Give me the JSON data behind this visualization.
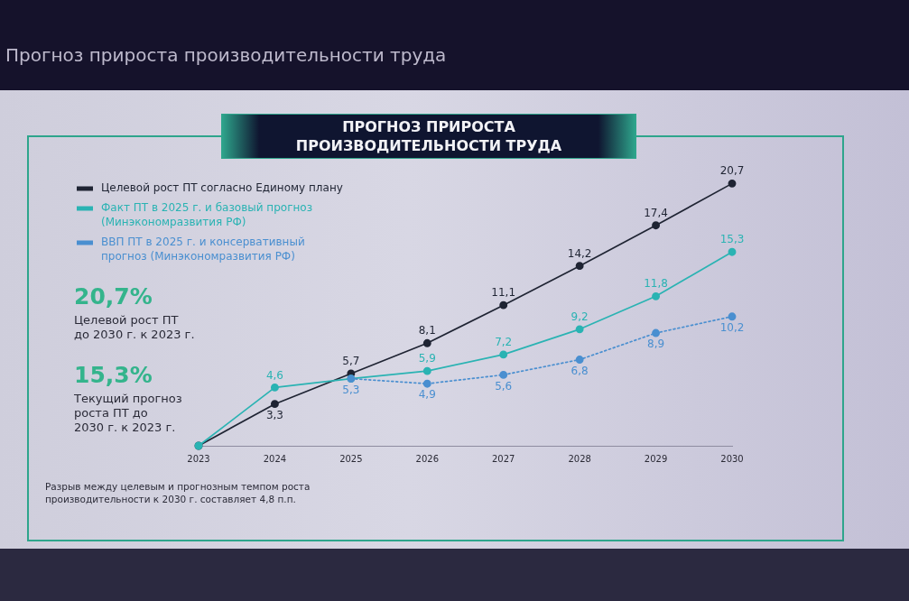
{
  "chart_data": {
    "type": "line",
    "title": "Прогноз прироста производительности труда",
    "subtitle": "ПРОГНОЗ ПРИРОСТА ПРОИЗВОДИТЕЛЬНОСТИ ТРУДА",
    "categories": [
      "2023",
      "2024",
      "2025",
      "2026",
      "2027",
      "2028",
      "2029",
      "2030"
    ],
    "series": [
      {
        "name": "Целевой рост ПТ согласно Единому плану",
        "color": "#1f2433",
        "line_style": "solid",
        "values": [
          0,
          3.3,
          5.7,
          8.1,
          11.1,
          14.2,
          17.4,
          20.7
        ],
        "value_labels": [
          null,
          "3,3",
          "5,7",
          "8,1",
          "11,1",
          "14,2",
          "17,4",
          "20,7"
        ]
      },
      {
        "name": "Факт ПТ в 2025 г. и базовый прогноз (Минэкономразвития РФ)",
        "color": "#2ab3b3",
        "line_style": "solid",
        "values": [
          0,
          4.6,
          5.3,
          5.9,
          7.2,
          9.2,
          11.8,
          15.3
        ],
        "value_labels": [
          null,
          "4,6",
          null,
          "5,9",
          "7,2",
          "9,2",
          "11,8",
          "15,3"
        ]
      },
      {
        "name": "ВВП ПТ в 2025 г. и консервативный прогноз (Минэкономразвития РФ)",
        "color": "#4a8fd0",
        "line_style": "dotted",
        "values": [
          null,
          null,
          5.3,
          4.9,
          5.6,
          6.8,
          8.9,
          10.2
        ],
        "value_labels": [
          null,
          null,
          "5,3",
          "4,9",
          "5,6",
          "6,8",
          "8,9",
          "10,2"
        ]
      }
    ],
    "marker": "circle",
    "grid": false,
    "legend": "top left",
    "annotations": [
      "20,7%",
      "Целевой рост ПТ до 2030 г. к 2023 г.",
      "15,3%",
      "Текущий прогноз роста ПТ до 2030 г. к 2023 г.",
      "Разрыв между целевым и прогнозным темпом роста производительности к 2030 г. составляет 4,8 п.п."
    ]
  }
}
